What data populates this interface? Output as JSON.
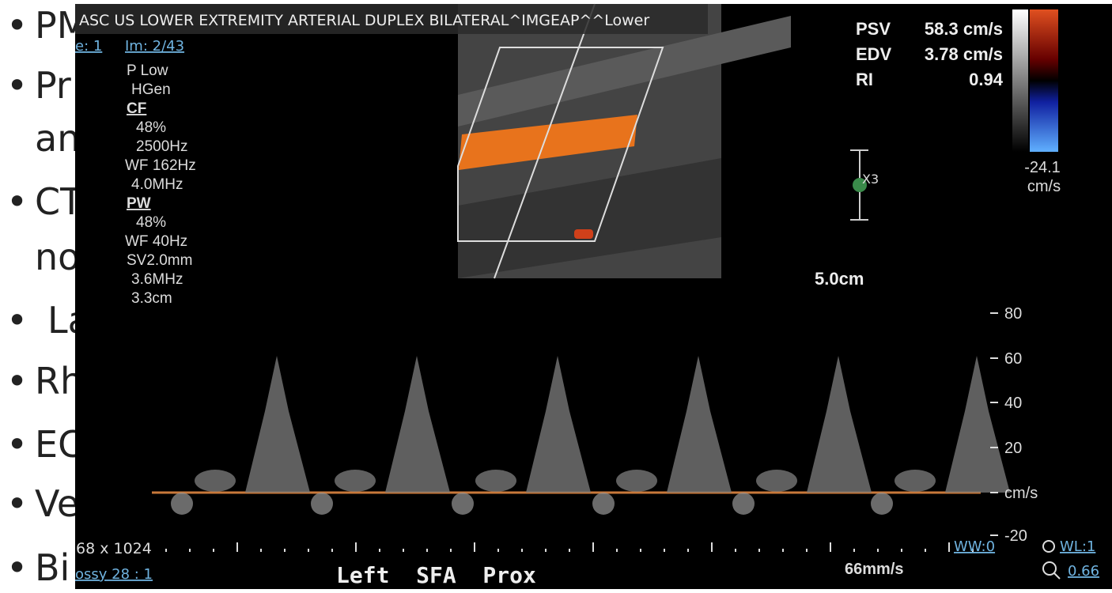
{
  "slide": {
    "bullets": [
      "PM",
      "Pr",
      "an",
      "CT",
      "no",
      "La",
      "Rh",
      "EC",
      "Ve",
      "Bi"
    ]
  },
  "viewer": {
    "title": "ASC US LOWER EXTREMITY ARTERIAL DUPLEX BILATERAL^IMGEAP^^Lower",
    "series_link": "e: 1",
    "image_link": "Im: 2/43",
    "params": [
      "P Low",
      "HGen",
      "CF",
      "48%",
      "2500Hz",
      "WF 162Hz",
      "4.0MHz",
      "PW",
      "48%",
      "WF 40Hz",
      "SV2.0mm",
      "3.6MHz",
      "3.3cm"
    ],
    "measurements": [
      {
        "label": "PSV",
        "value": "58.3 cm/s"
      },
      {
        "label": "EDV",
        "value": "3.78 cm/s"
      },
      {
        "label": "RI",
        "value": "0.94"
      }
    ],
    "color_scale": {
      "min": "-24.1",
      "unit": "cm/s"
    },
    "zoom": "X3",
    "depth": "5.0cm",
    "velocity_scale": [
      "80",
      "60",
      "40",
      "20",
      "cm/s",
      "-20"
    ],
    "size": "68 x 1024",
    "compression": "ossy 28 : 1",
    "annotation": "Left  SFA  Prox",
    "sweep": "66mm/s",
    "ww": "WW:0",
    "wl": "WL:1",
    "zoom_level": "0.66"
  }
}
